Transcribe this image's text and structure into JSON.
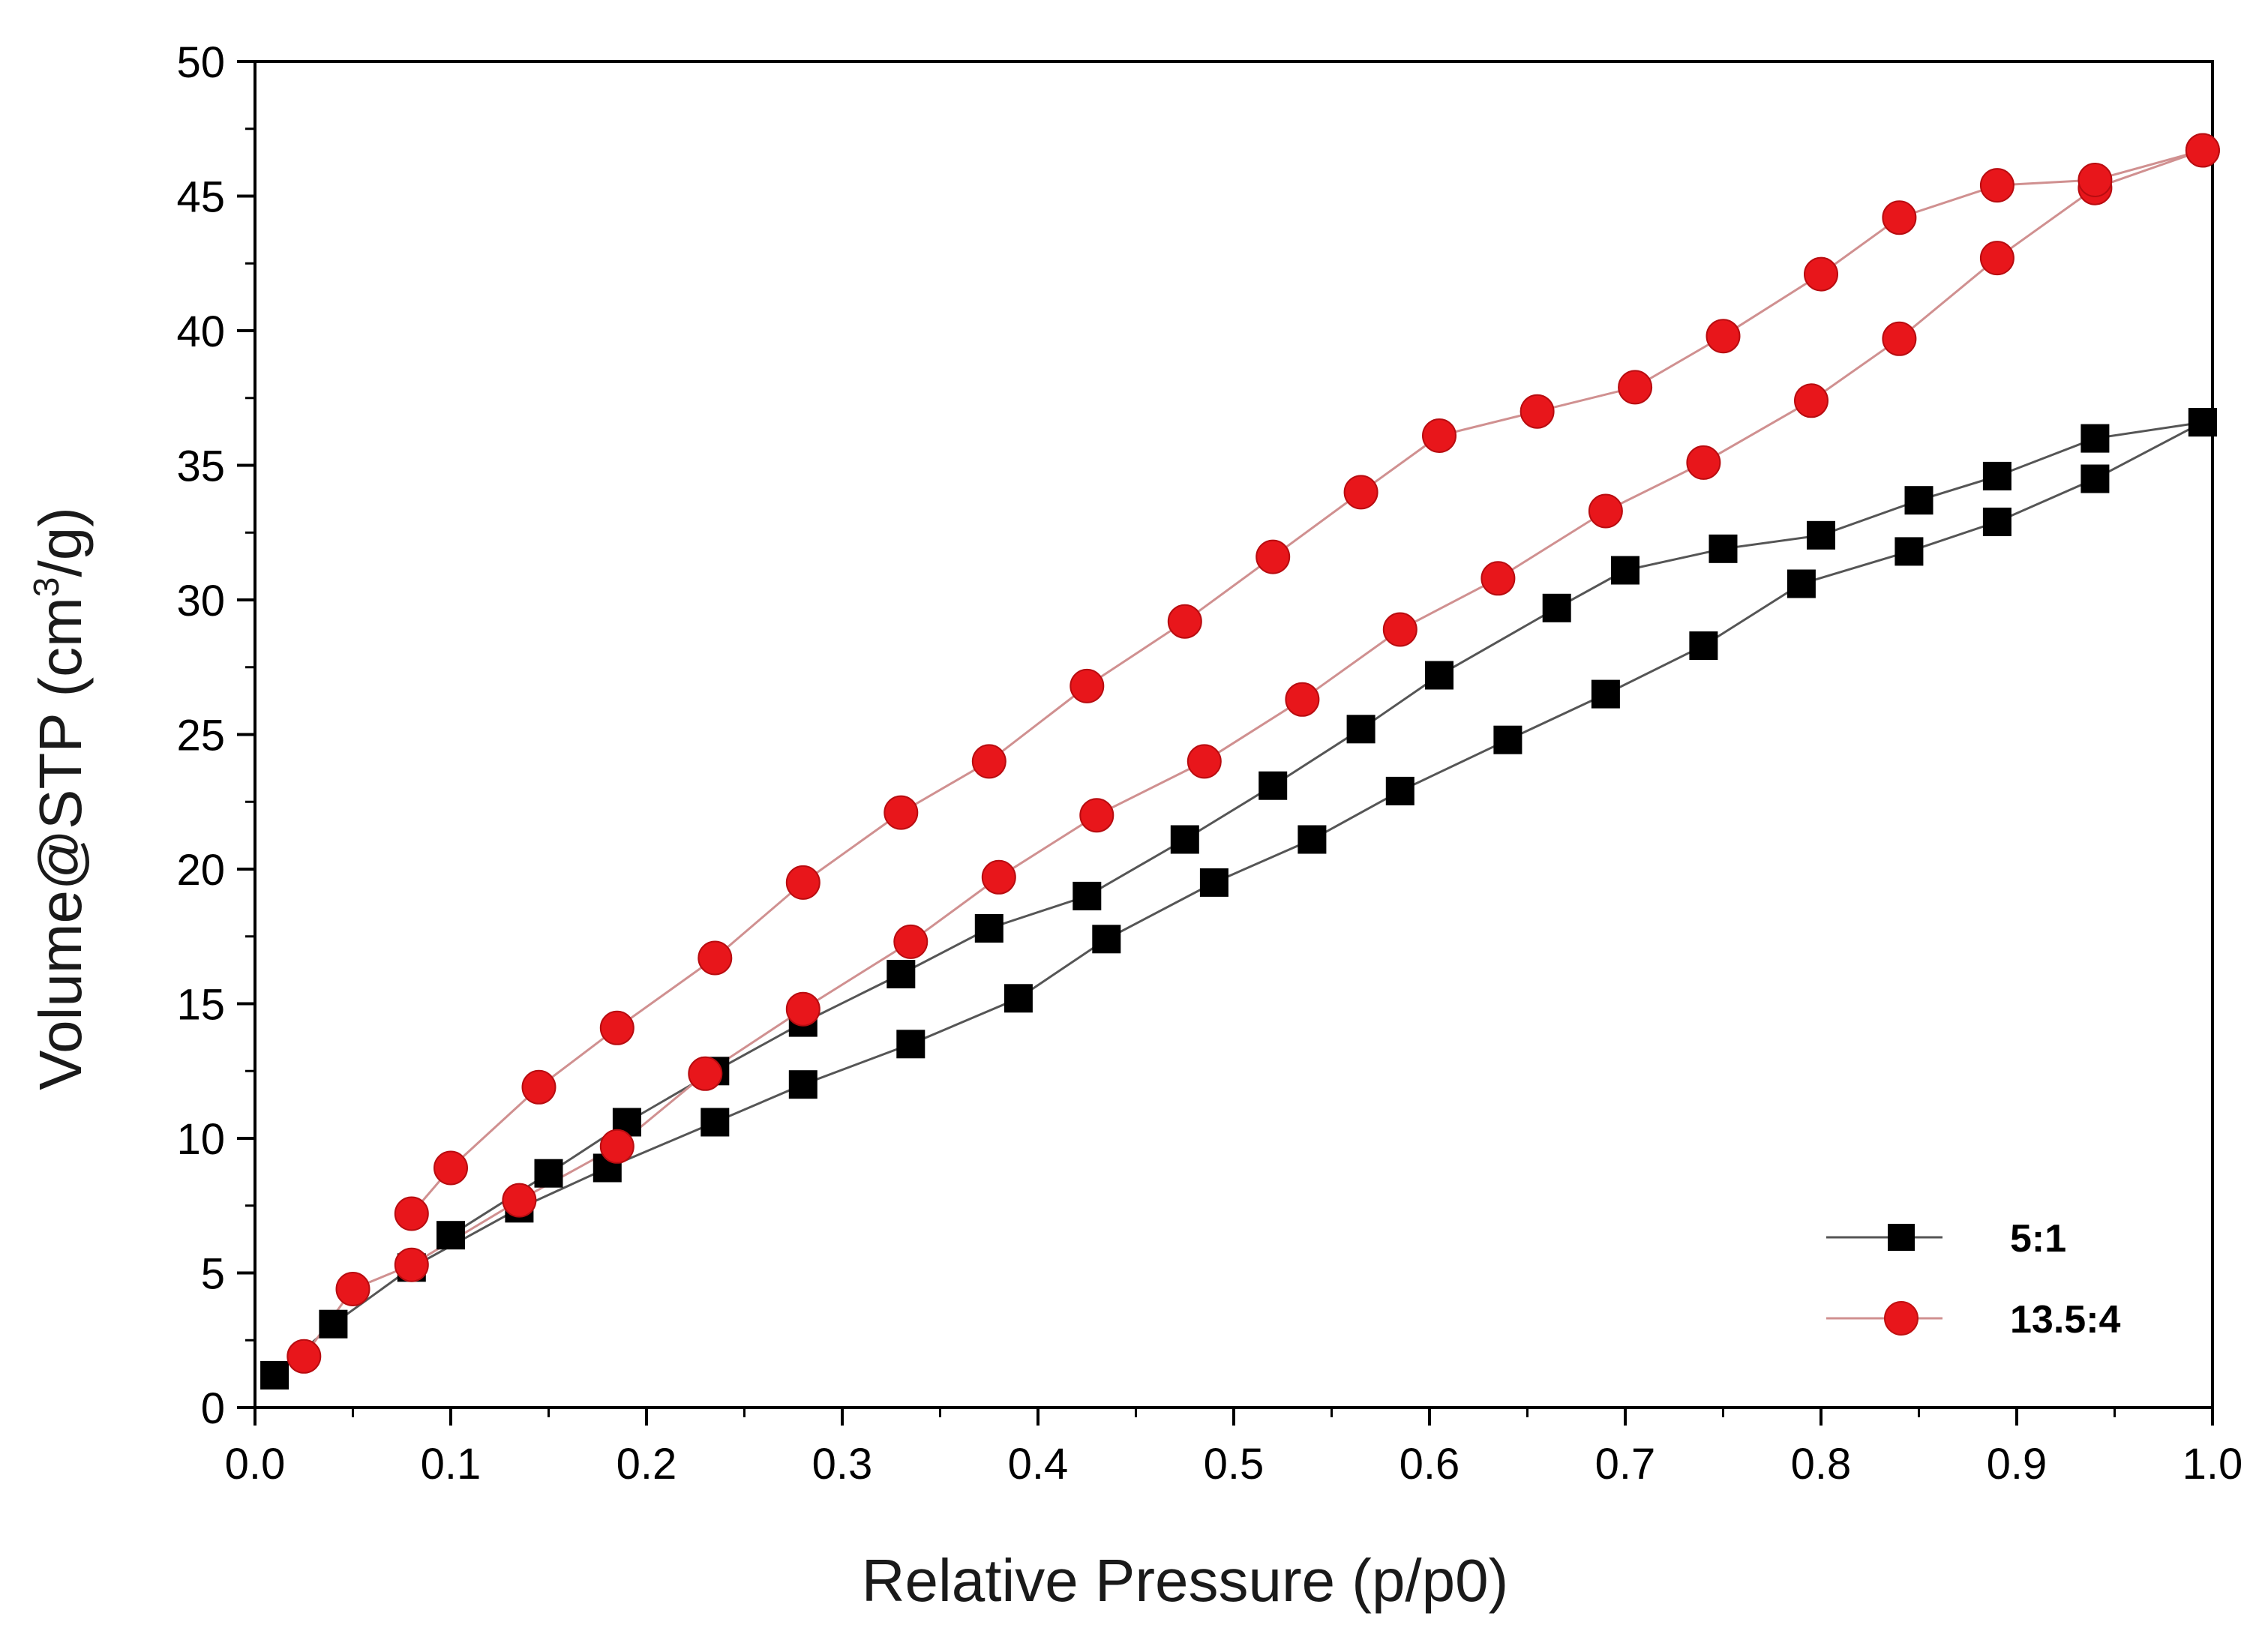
{
  "chart_data": {
    "type": "line",
    "title": "",
    "xlabel": "Relative Pressure (p/p0)",
    "ylabel_prefix": "Volume@STP (cm",
    "ylabel_sup": "3",
    "ylabel_suffix": "/g)",
    "xlim": [
      0.0,
      1.0
    ],
    "ylim": [
      0,
      50
    ],
    "xticks": [
      "0.0",
      "0.1",
      "0.2",
      "0.3",
      "0.4",
      "0.5",
      "0.6",
      "0.7",
      "0.8",
      "0.9",
      "1.0"
    ],
    "yticks": [
      "0",
      "5",
      "10",
      "15",
      "20",
      "25",
      "30",
      "35",
      "40",
      "45",
      "50"
    ],
    "grid": false,
    "legend_position": "bottom-right",
    "series": [
      {
        "name": "5:1",
        "marker": "square",
        "color": "#000000",
        "line_color": "#555555",
        "adsorption": [
          [
            0.01,
            1.2
          ],
          [
            0.04,
            3.1
          ],
          [
            0.08,
            5.2
          ],
          [
            0.135,
            7.4
          ],
          [
            0.18,
            8.9
          ],
          [
            0.235,
            10.6
          ],
          [
            0.28,
            12.0
          ],
          [
            0.335,
            13.5
          ],
          [
            0.39,
            15.2
          ],
          [
            0.435,
            17.4
          ],
          [
            0.49,
            19.5
          ],
          [
            0.54,
            21.1
          ],
          [
            0.585,
            22.9
          ],
          [
            0.64,
            24.8
          ],
          [
            0.69,
            26.5
          ],
          [
            0.74,
            28.3
          ],
          [
            0.79,
            30.6
          ],
          [
            0.845,
            31.8
          ],
          [
            0.89,
            32.9
          ],
          [
            0.94,
            34.5
          ],
          [
            0.995,
            36.6
          ]
        ],
        "desorption": [
          [
            0.995,
            36.6
          ],
          [
            0.94,
            36.0
          ],
          [
            0.89,
            34.6
          ],
          [
            0.85,
            33.7
          ],
          [
            0.8,
            32.4
          ],
          [
            0.75,
            31.9
          ],
          [
            0.7,
            31.1
          ],
          [
            0.665,
            29.7
          ],
          [
            0.605,
            27.2
          ],
          [
            0.565,
            25.2
          ],
          [
            0.52,
            23.1
          ],
          [
            0.475,
            21.1
          ],
          [
            0.425,
            19.0
          ],
          [
            0.375,
            17.8
          ],
          [
            0.33,
            16.1
          ],
          [
            0.28,
            14.3
          ],
          [
            0.235,
            12.5
          ],
          [
            0.19,
            10.6
          ],
          [
            0.15,
            8.7
          ],
          [
            0.1,
            6.4
          ]
        ]
      },
      {
        "name": "13.5:4",
        "marker": "circle",
        "color": "#e8161b",
        "line_color": "#d09090",
        "adsorption": [
          [
            0.025,
            1.9
          ],
          [
            0.05,
            4.4
          ],
          [
            0.08,
            5.3
          ],
          [
            0.135,
            7.7
          ],
          [
            0.185,
            9.7
          ],
          [
            0.23,
            12.4
          ],
          [
            0.28,
            14.8
          ],
          [
            0.335,
            17.3
          ],
          [
            0.38,
            19.7
          ],
          [
            0.43,
            22.0
          ],
          [
            0.485,
            24.0
          ],
          [
            0.535,
            26.3
          ],
          [
            0.585,
            28.9
          ],
          [
            0.635,
            30.8
          ],
          [
            0.69,
            33.3
          ],
          [
            0.74,
            35.1
          ],
          [
            0.795,
            37.4
          ],
          [
            0.84,
            39.7
          ],
          [
            0.89,
            42.7
          ],
          [
            0.94,
            45.3
          ],
          [
            0.995,
            46.7
          ]
        ],
        "desorption": [
          [
            0.995,
            46.7
          ],
          [
            0.94,
            45.6
          ],
          [
            0.89,
            45.4
          ],
          [
            0.84,
            44.2
          ],
          [
            0.8,
            42.1
          ],
          [
            0.75,
            39.8
          ],
          [
            0.705,
            37.9
          ],
          [
            0.655,
            37.0
          ],
          [
            0.605,
            36.1
          ],
          [
            0.565,
            34.0
          ],
          [
            0.52,
            31.6
          ],
          [
            0.475,
            29.2
          ],
          [
            0.425,
            26.8
          ],
          [
            0.375,
            24.0
          ],
          [
            0.33,
            22.1
          ],
          [
            0.28,
            19.5
          ],
          [
            0.235,
            16.7
          ],
          [
            0.185,
            14.1
          ],
          [
            0.145,
            11.9
          ],
          [
            0.1,
            8.9
          ],
          [
            0.08,
            7.2
          ]
        ]
      }
    ]
  }
}
